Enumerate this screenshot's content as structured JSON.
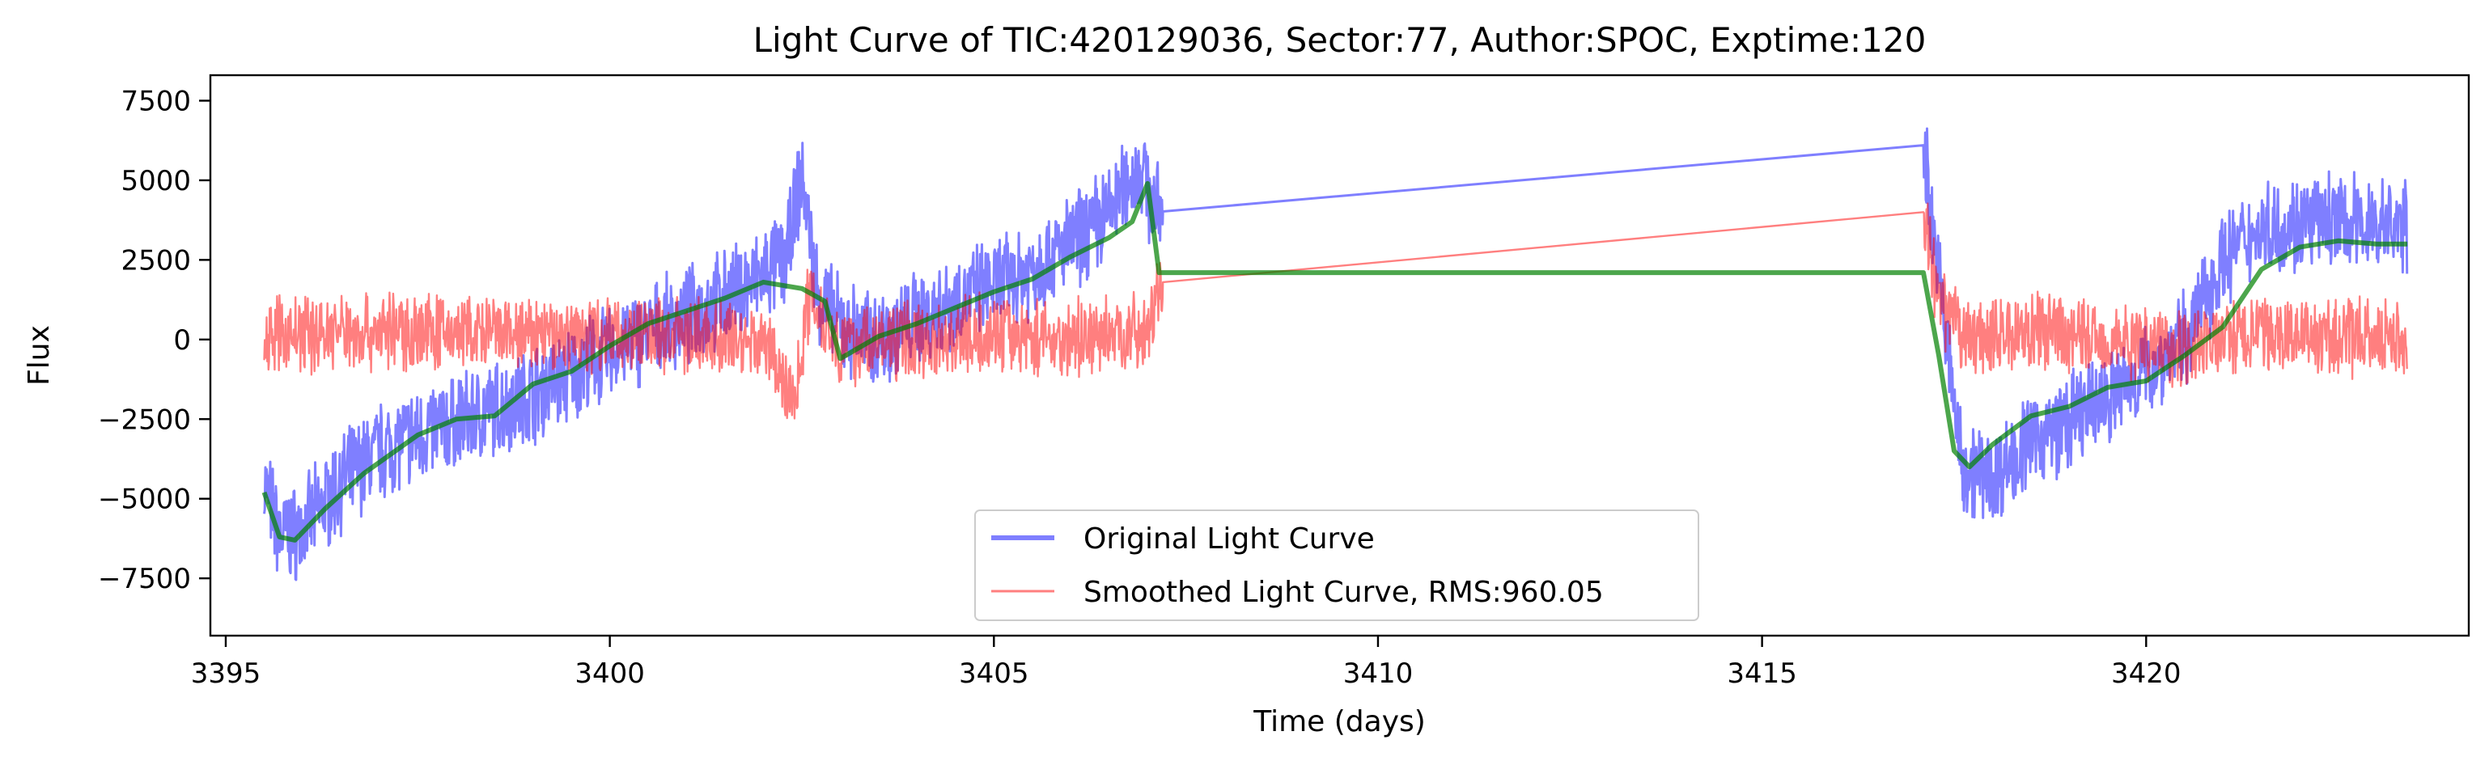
{
  "chart_data": {
    "type": "line",
    "title": "Light Curve of TIC:420129036, Sector:77, Author:SPOC, Exptime:120",
    "xlabel": "Time (days)",
    "ylabel": "Flux",
    "xlim": [
      3394.8,
      3424.2
    ],
    "ylim": [
      -9300,
      8300
    ],
    "xticks": [
      3395,
      3400,
      3405,
      3410,
      3415,
      3420
    ],
    "yticks": [
      -7500,
      -5000,
      -2500,
      0,
      2500,
      5000,
      7500
    ],
    "grid": false,
    "legend_position": "lower center",
    "series": [
      {
        "name": "Original Light Curve",
        "color": "#0000ff",
        "opacity": 0.5,
        "noise_amplitude": 1300,
        "x": [
          3395.5,
          3395.7,
          3396.0,
          3396.5,
          3397.0,
          3397.5,
          3398.0,
          3398.5,
          3399.0,
          3399.5,
          3400.0,
          3400.5,
          3401.0,
          3401.5,
          3402.0,
          3402.3,
          3402.5,
          3402.7,
          3403.0,
          3403.5,
          3404.0,
          3404.5,
          3405.0,
          3405.5,
          3406.0,
          3406.5,
          3406.9,
          3407.1,
          3417.1,
          3417.3,
          3417.6,
          3418.0,
          3418.5,
          3419.0,
          3419.5,
          3420.0,
          3420.5,
          3421.0,
          3421.5,
          3422.0,
          3422.5,
          3423.0,
          3423.4
        ],
        "y": [
          -4500,
          -6200,
          -6000,
          -4500,
          -3500,
          -3000,
          -2600,
          -2200,
          -1700,
          -1100,
          -400,
          200,
          700,
          1300,
          2000,
          2600,
          5200,
          1500,
          400,
          0,
          700,
          1200,
          1700,
          2200,
          3000,
          4000,
          5500,
          4000,
          6100,
          2000,
          -4000,
          -4300,
          -3200,
          -2600,
          -1800,
          -1000,
          0,
          2500,
          3500,
          3600,
          3700,
          3600,
          3500
        ]
      },
      {
        "name": "Smoothed Light Curve, RMS:960.05",
        "color": "#ff0000",
        "opacity": 0.5,
        "noise_amplitude": 1050,
        "x": [
          3395.5,
          3396.0,
          3397.0,
          3398.0,
          3399.0,
          3400.0,
          3401.0,
          3402.0,
          3402.4,
          3402.6,
          3403.0,
          3404.0,
          3405.0,
          3406.0,
          3407.0,
          3407.2,
          3417.1,
          3417.3,
          3417.7,
          3418.5,
          3419.5,
          3420.5,
          3421.5,
          3422.5,
          3423.4
        ],
        "y": [
          100,
          200,
          300,
          200,
          100,
          200,
          100,
          0,
          -2000,
          1500,
          -200,
          0,
          200,
          0,
          300,
          1800,
          4000,
          1000,
          0,
          300,
          0,
          -200,
          200,
          0,
          100
        ]
      },
      {
        "name": "",
        "color": "#008000",
        "opacity": 0.7,
        "noise_amplitude": 0,
        "x": [
          3395.5,
          3395.7,
          3395.9,
          3396.3,
          3396.8,
          3397.5,
          3398.0,
          3398.5,
          3399.0,
          3399.5,
          3400.0,
          3400.5,
          3401.0,
          3401.5,
          3402.0,
          3402.5,
          3402.8,
          3403.0,
          3403.5,
          3404.0,
          3404.5,
          3405.0,
          3405.5,
          3406.0,
          3406.5,
          3406.8,
          3407.0,
          3407.15,
          3417.1,
          3417.3,
          3417.5,
          3417.7,
          3418.0,
          3418.5,
          3419.0,
          3419.5,
          3420.0,
          3420.5,
          3421.0,
          3421.5,
          3422.0,
          3422.5,
          3423.0,
          3423.4
        ],
        "y": [
          -4800,
          -6200,
          -6300,
          -5300,
          -4200,
          -3000,
          -2500,
          -2400,
          -1400,
          -1000,
          -200,
          500,
          900,
          1300,
          1800,
          1600,
          1200,
          -600,
          100,
          500,
          1000,
          1500,
          1900,
          2600,
          3200,
          3700,
          4900,
          2100,
          2100,
          -500,
          -3500,
          -4000,
          -3300,
          -2400,
          -2100,
          -1500,
          -1300,
          -500,
          400,
          2200,
          2900,
          3100,
          3000,
          3000
        ]
      }
    ],
    "legend": [
      {
        "label": "Original Light Curve",
        "color": "#0000ff",
        "opacity": 0.5,
        "line_width": 6
      },
      {
        "label": "Smoothed Light Curve, RMS:960.05",
        "color": "#ff0000",
        "opacity": 0.5,
        "line_width": 3
      }
    ]
  }
}
